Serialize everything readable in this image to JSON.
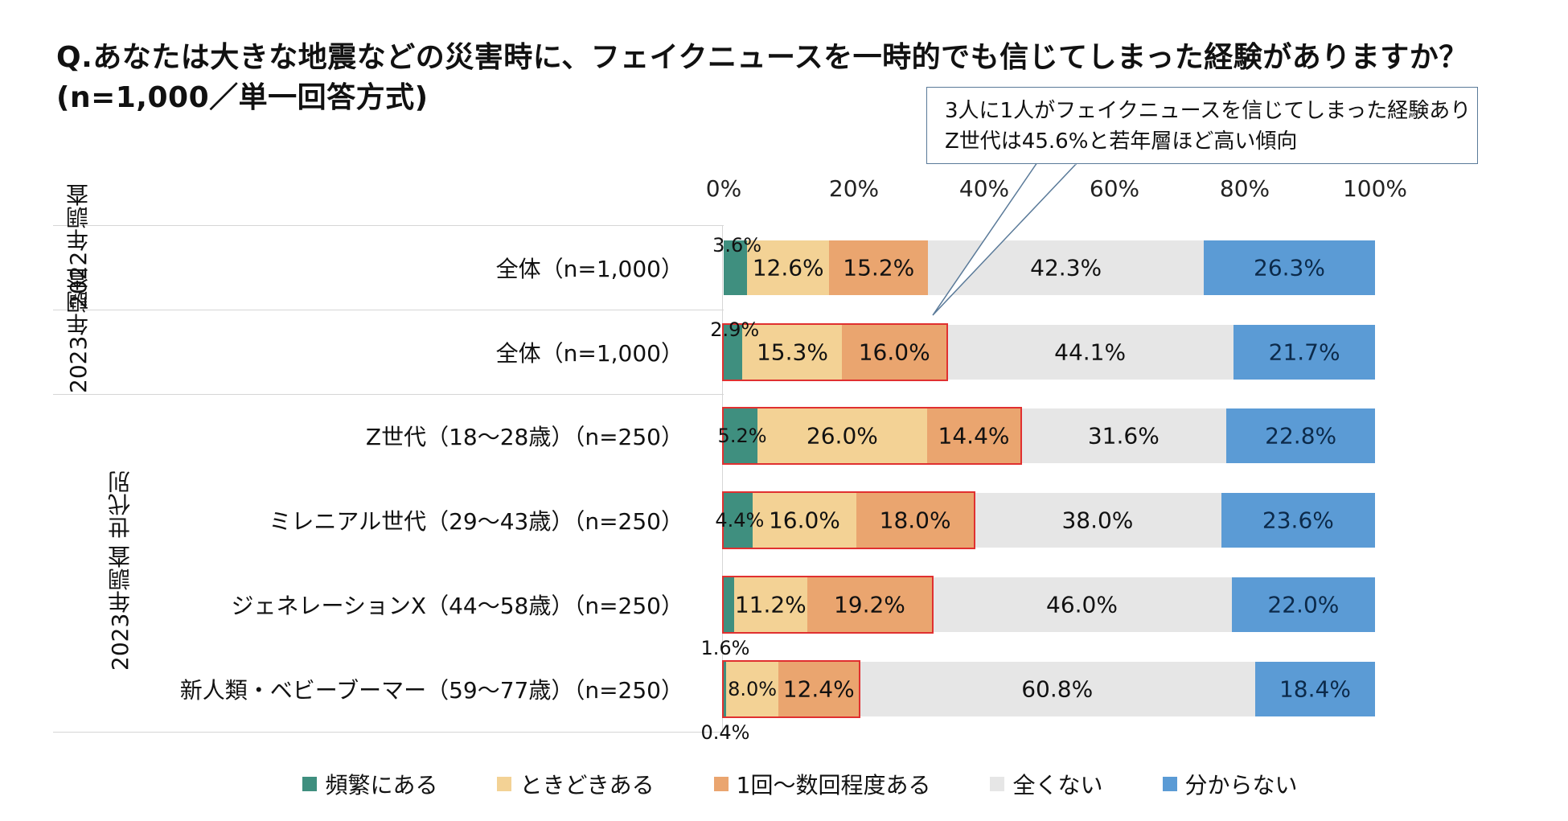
{
  "title": {
    "line1": "Q.あなたは大きな地震などの災害時に、フェイクニュースを一時的でも信じてしまった経験がありますか？",
    "line2": "(n=1,000／単一回答方式)"
  },
  "callout": {
    "line1": "3人に1人がフェイクニュースを信じてしまった経験あり",
    "line2": "Z世代は45.6%と若年層ほど高い傾向"
  },
  "groups": {
    "g2022": "2022年調査",
    "g2023": "2023年調査",
    "g2023gen": "2023年調査 世代別"
  },
  "colors": {
    "frequent": "#3f8f7f",
    "sometimes": "#f3d295",
    "once": "#eaa56f",
    "never": "#e6e6e6",
    "unknown": "#5b9bd5",
    "highlight": "#e03030"
  },
  "chart_data": {
    "type": "bar",
    "orientation": "horizontal",
    "stacked": true,
    "xlim": [
      0,
      100
    ],
    "tick_labels": [
      "0%",
      "20%",
      "40%",
      "60%",
      "80%",
      "100%"
    ],
    "categories": [
      "全体（n=1,000）",
      "全体（n=1,000）",
      "Z世代（18～28歳）（n=250）",
      "ミレニアル世代（29～43歳）（n=250）",
      "ジェネレーションX（44～58歳）（n=250）",
      "新人類・ベビーブーマー（59～77歳）（n=250）"
    ],
    "series": [
      {
        "name": "頻繁にある",
        "values": [
          3.6,
          2.9,
          5.2,
          4.4,
          1.6,
          0.4
        ]
      },
      {
        "name": "ときどきある",
        "values": [
          12.6,
          15.3,
          26.0,
          16.0,
          11.2,
          8.0
        ]
      },
      {
        "name": "1回～数回程度ある",
        "values": [
          15.2,
          16.0,
          14.4,
          18.0,
          19.2,
          12.4
        ]
      },
      {
        "name": "全くない",
        "values": [
          42.3,
          44.1,
          31.6,
          38.0,
          46.0,
          60.8
        ]
      },
      {
        "name": "分からない",
        "values": [
          26.3,
          21.7,
          22.8,
          23.6,
          22.0,
          18.4
        ]
      }
    ],
    "highlighted_rows": [
      1,
      2,
      3,
      4,
      5
    ],
    "legend_position": "bottom"
  }
}
